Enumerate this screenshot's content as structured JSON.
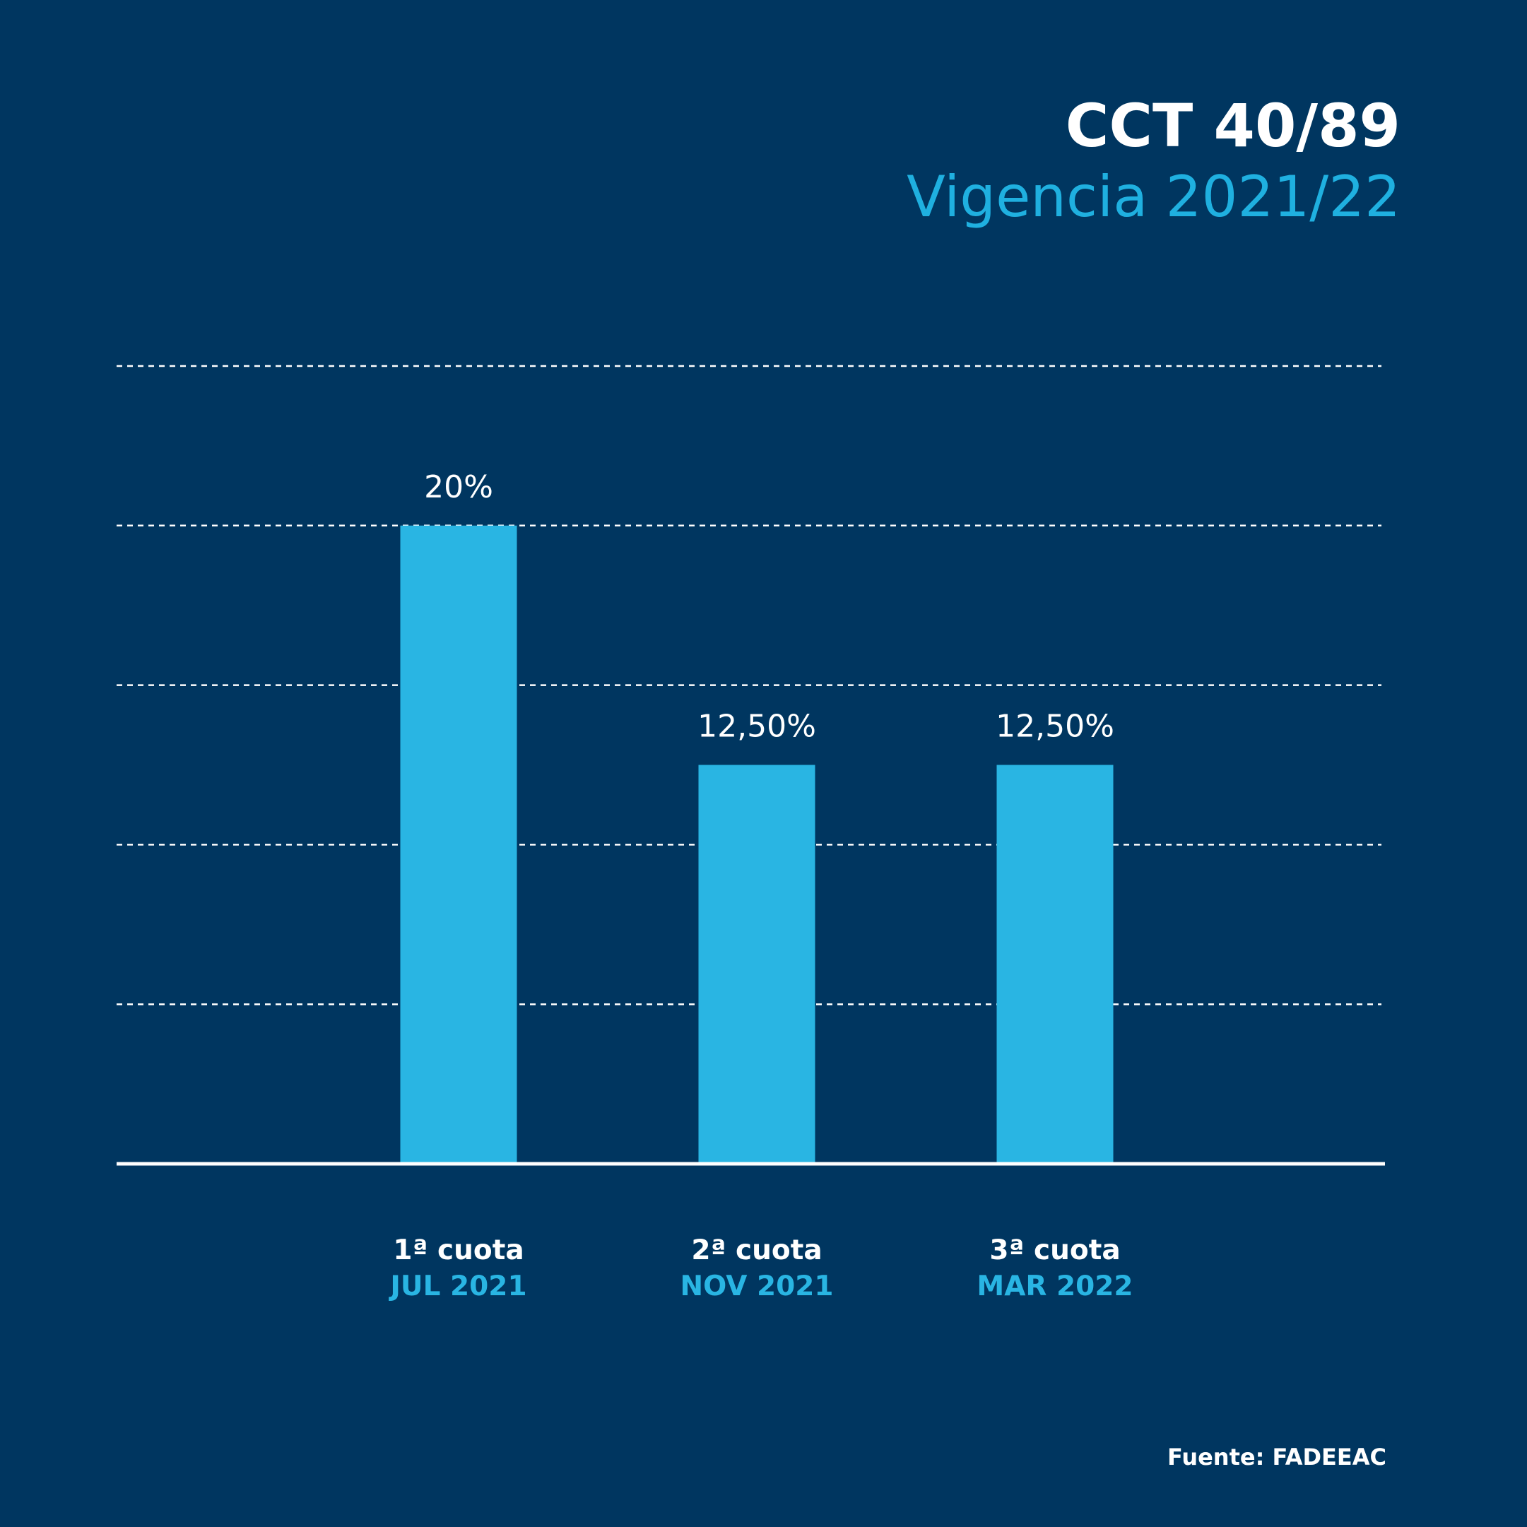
{
  "chart_data": {
    "type": "bar",
    "title": "CCT 40/89",
    "subtitle": "Vigencia 2021/22",
    "categories": [
      "1ª cuota",
      "2ª cuota",
      "3ª cuota"
    ],
    "periods": [
      "JUL 2021",
      "NOV 2021",
      "MAR 2022"
    ],
    "values": [
      20,
      12.5,
      12.5
    ],
    "value_labels": [
      "20%",
      "12,50%",
      "12,50%"
    ],
    "color": "#29b5e3",
    "ylim": [
      0,
      25
    ],
    "yticks": [
      5,
      10,
      15,
      20,
      25
    ],
    "grid": true,
    "source": "Fuente: FADEEAC"
  }
}
